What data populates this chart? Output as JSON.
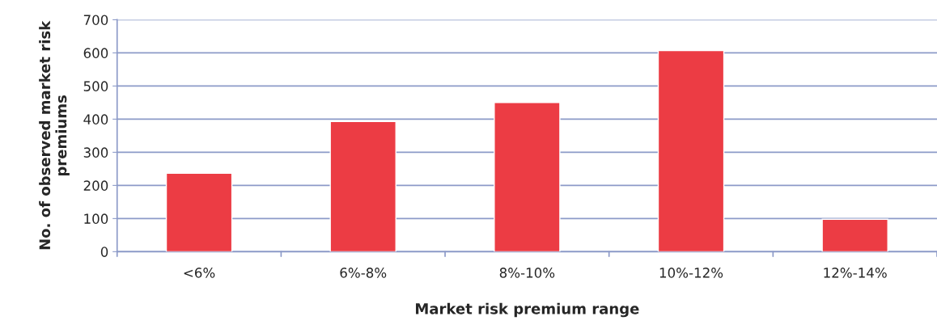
{
  "chart_data": {
    "type": "bar",
    "categories": [
      "<6%",
      "6%-8%",
      "8%-10%",
      "10%-12%",
      "12%-14%"
    ],
    "values": [
      237,
      393,
      450,
      607,
      98
    ],
    "color": "#ec3c44",
    "xlabel": "Market risk premium range",
    "ylabel": "No. of observed market risk\npremiums",
    "ylim": [
      0,
      700
    ],
    "yticks": [
      0,
      100,
      200,
      300,
      400,
      500,
      600,
      700
    ],
    "grid": "y",
    "legend": false
  }
}
